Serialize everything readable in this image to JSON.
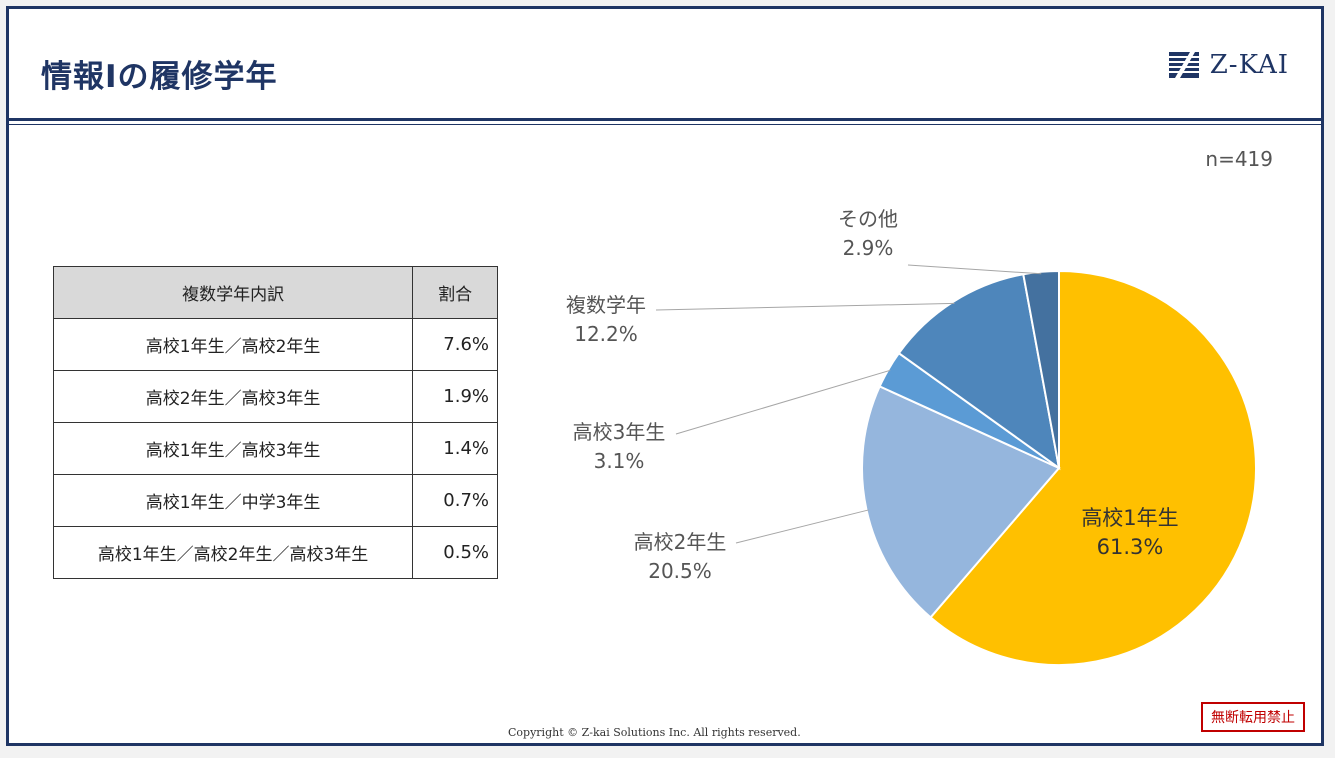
{
  "header": {
    "title": "情報Ⅰの履修学年",
    "logo_text": "Z-KAI"
  },
  "sample_size": "n=419",
  "table": {
    "headers": [
      "複数学年内訳",
      "割合"
    ],
    "rows": [
      {
        "label": "高校1年生／高校2年生",
        "value": "7.6%"
      },
      {
        "label": "高校2年生／高校3年生",
        "value": "1.9%"
      },
      {
        "label": "高校1年生／高校3年生",
        "value": "1.4%"
      },
      {
        "label": "高校1年生／中学3年生",
        "value": "0.7%"
      },
      {
        "label": "高校1年生／高校2年生／高校3年生",
        "value": "0.5%"
      }
    ]
  },
  "chart_data": {
    "type": "pie",
    "title": "",
    "slices": [
      {
        "label": "高校1年生",
        "value": 61.3,
        "value_label": "61.3%",
        "color": "#ffc000"
      },
      {
        "label": "高校2年生",
        "value": 20.5,
        "value_label": "20.5%",
        "color": "#95b6dd"
      },
      {
        "label": "高校3年生",
        "value": 3.1,
        "value_label": "3.1%",
        "color": "#5b9bd5"
      },
      {
        "label": "複数学年",
        "value": 12.2,
        "value_label": "12.2%",
        "color": "#4e86bb"
      },
      {
        "label": "その他",
        "value": 2.9,
        "value_label": "2.9%",
        "color": "#44719f"
      }
    ],
    "start_angle": "12 o'clock",
    "direction": "clockwise",
    "legend": "none",
    "data_labels": "category and percent"
  },
  "footer": {
    "copyright": "Copyright © Z-kai Solutions Inc. All rights reserved.",
    "stamp": "無断転用禁止"
  }
}
